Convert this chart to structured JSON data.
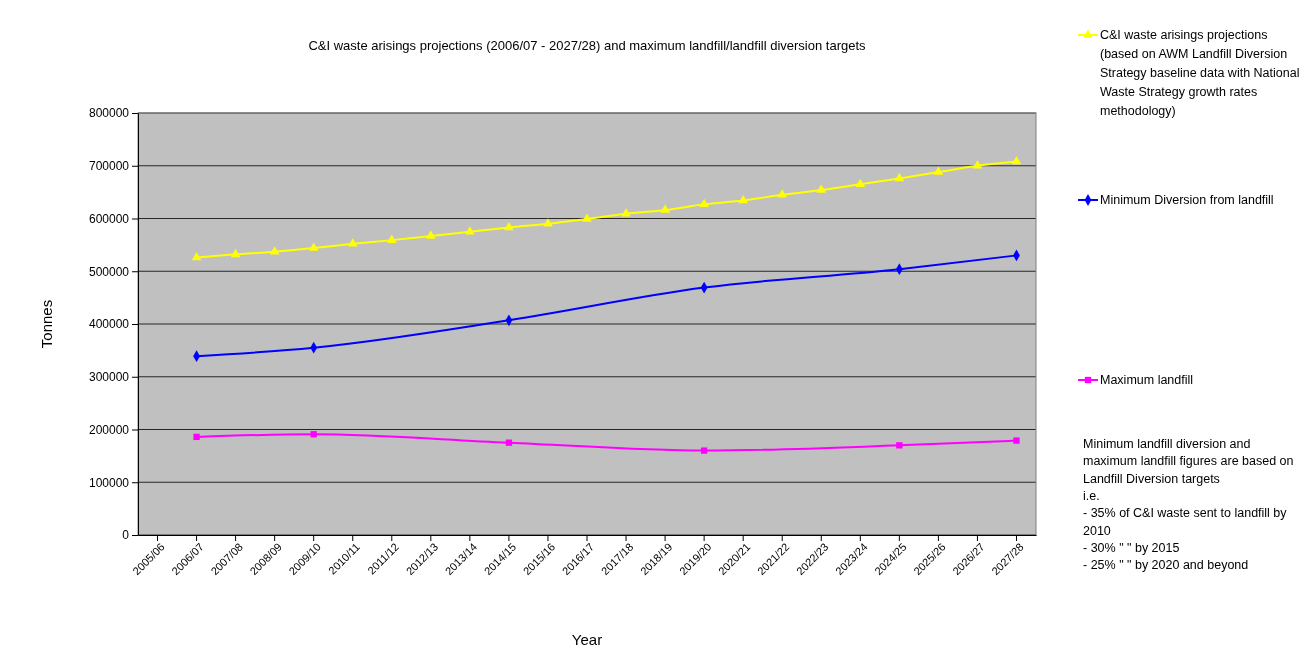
{
  "chart_data": {
    "type": "line",
    "title": "C&I waste arisings projections (2006/07 - 2027/28) and maximum landfill/landfill diversion targets",
    "xlabel": "Year",
    "ylabel": "Tonnes",
    "categories": [
      "2005/06",
      "2006/07",
      "2007/08",
      "2008/09",
      "2009/10",
      "2010/11",
      "2011/12",
      "2012/13",
      "2013/14",
      "2014/15",
      "2015/16",
      "2016/17",
      "2017/18",
      "2018/19",
      "2019/20",
      "2020/21",
      "2021/22",
      "2022/23",
      "2023/24",
      "2024/25",
      "2025/26",
      "2026/27",
      "2027/28"
    ],
    "series": [
      {
        "name": "C&I waste arisings projections (based on AWM Landfill Diversion Strategy baseline data with National Waste Strategy growth rates methodology)",
        "color": "#ffff00",
        "marker": "triangle",
        "values": [
          null,
          526000,
          532000,
          537000,
          544000,
          552000,
          559000,
          567000,
          575000,
          583000,
          590000,
          599000,
          609000,
          616000,
          627000,
          634000,
          645000,
          654000,
          665000,
          676000,
          688000,
          700000,
          708000
        ]
      },
      {
        "name": "Minimum Diversion from landfill",
        "color": "#0000ff",
        "marker": "diamond",
        "values": [
          null,
          339000,
          null,
          null,
          355000,
          null,
          null,
          null,
          null,
          407000,
          null,
          null,
          null,
          null,
          469000,
          null,
          null,
          null,
          null,
          504000,
          null,
          null,
          530000
        ]
      },
      {
        "name": "Maximum landfill",
        "color": "#ff00ff",
        "marker": "square",
        "values": [
          null,
          186000,
          null,
          null,
          191000,
          null,
          null,
          null,
          null,
          175000,
          null,
          null,
          null,
          null,
          160000,
          null,
          null,
          null,
          null,
          170000,
          null,
          null,
          179000
        ]
      }
    ],
    "ylim": [
      0,
      800000
    ],
    "yticks": [
      0,
      100000,
      200000,
      300000,
      400000,
      500000,
      600000,
      700000,
      800000
    ],
    "grid": "y",
    "legend": "right",
    "annotations": [
      "Minimum landfill diversion and maximum landfill figures are based on Landfill Diversion targets\ni.e.\n- 35% of C&I waste sent to landfill by 2010\n- 30% \"      \" by 2015\n- 25% \"      \" by 2020 and beyond"
    ]
  }
}
